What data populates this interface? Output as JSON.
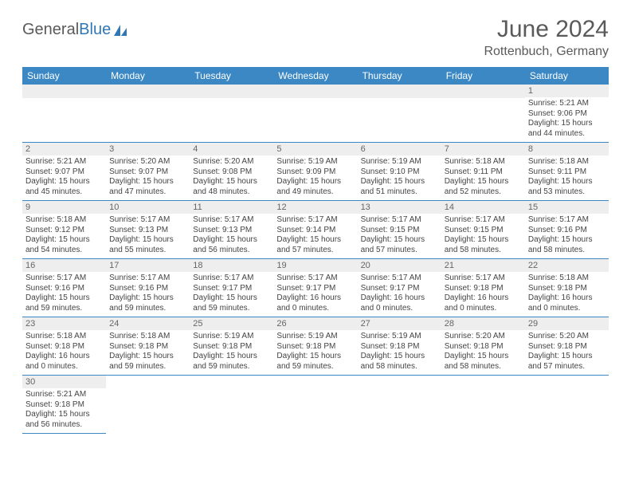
{
  "logo": {
    "text1": "General",
    "text2": "Blue"
  },
  "title": "June 2024",
  "location": "Rottenbuch, Germany",
  "colors": {
    "header_bg": "#3b88c4",
    "header_text": "#ffffff",
    "daynum_bg": "#eeeeee",
    "border": "#3b88c4"
  },
  "weekdays": [
    "Sunday",
    "Monday",
    "Tuesday",
    "Wednesday",
    "Thursday",
    "Friday",
    "Saturday"
  ],
  "weeks": [
    [
      {
        "day": "",
        "sunrise": "",
        "sunset": "",
        "daylight": ""
      },
      {
        "day": "",
        "sunrise": "",
        "sunset": "",
        "daylight": ""
      },
      {
        "day": "",
        "sunrise": "",
        "sunset": "",
        "daylight": ""
      },
      {
        "day": "",
        "sunrise": "",
        "sunset": "",
        "daylight": ""
      },
      {
        "day": "",
        "sunrise": "",
        "sunset": "",
        "daylight": ""
      },
      {
        "day": "",
        "sunrise": "",
        "sunset": "",
        "daylight": ""
      },
      {
        "day": "1",
        "sunrise": "Sunrise: 5:21 AM",
        "sunset": "Sunset: 9:06 PM",
        "daylight": "Daylight: 15 hours and 44 minutes."
      }
    ],
    [
      {
        "day": "2",
        "sunrise": "Sunrise: 5:21 AM",
        "sunset": "Sunset: 9:07 PM",
        "daylight": "Daylight: 15 hours and 45 minutes."
      },
      {
        "day": "3",
        "sunrise": "Sunrise: 5:20 AM",
        "sunset": "Sunset: 9:07 PM",
        "daylight": "Daylight: 15 hours and 47 minutes."
      },
      {
        "day": "4",
        "sunrise": "Sunrise: 5:20 AM",
        "sunset": "Sunset: 9:08 PM",
        "daylight": "Daylight: 15 hours and 48 minutes."
      },
      {
        "day": "5",
        "sunrise": "Sunrise: 5:19 AM",
        "sunset": "Sunset: 9:09 PM",
        "daylight": "Daylight: 15 hours and 49 minutes."
      },
      {
        "day": "6",
        "sunrise": "Sunrise: 5:19 AM",
        "sunset": "Sunset: 9:10 PM",
        "daylight": "Daylight: 15 hours and 51 minutes."
      },
      {
        "day": "7",
        "sunrise": "Sunrise: 5:18 AM",
        "sunset": "Sunset: 9:11 PM",
        "daylight": "Daylight: 15 hours and 52 minutes."
      },
      {
        "day": "8",
        "sunrise": "Sunrise: 5:18 AM",
        "sunset": "Sunset: 9:11 PM",
        "daylight": "Daylight: 15 hours and 53 minutes."
      }
    ],
    [
      {
        "day": "9",
        "sunrise": "Sunrise: 5:18 AM",
        "sunset": "Sunset: 9:12 PM",
        "daylight": "Daylight: 15 hours and 54 minutes."
      },
      {
        "day": "10",
        "sunrise": "Sunrise: 5:17 AM",
        "sunset": "Sunset: 9:13 PM",
        "daylight": "Daylight: 15 hours and 55 minutes."
      },
      {
        "day": "11",
        "sunrise": "Sunrise: 5:17 AM",
        "sunset": "Sunset: 9:13 PM",
        "daylight": "Daylight: 15 hours and 56 minutes."
      },
      {
        "day": "12",
        "sunrise": "Sunrise: 5:17 AM",
        "sunset": "Sunset: 9:14 PM",
        "daylight": "Daylight: 15 hours and 57 minutes."
      },
      {
        "day": "13",
        "sunrise": "Sunrise: 5:17 AM",
        "sunset": "Sunset: 9:15 PM",
        "daylight": "Daylight: 15 hours and 57 minutes."
      },
      {
        "day": "14",
        "sunrise": "Sunrise: 5:17 AM",
        "sunset": "Sunset: 9:15 PM",
        "daylight": "Daylight: 15 hours and 58 minutes."
      },
      {
        "day": "15",
        "sunrise": "Sunrise: 5:17 AM",
        "sunset": "Sunset: 9:16 PM",
        "daylight": "Daylight: 15 hours and 58 minutes."
      }
    ],
    [
      {
        "day": "16",
        "sunrise": "Sunrise: 5:17 AM",
        "sunset": "Sunset: 9:16 PM",
        "daylight": "Daylight: 15 hours and 59 minutes."
      },
      {
        "day": "17",
        "sunrise": "Sunrise: 5:17 AM",
        "sunset": "Sunset: 9:16 PM",
        "daylight": "Daylight: 15 hours and 59 minutes."
      },
      {
        "day": "18",
        "sunrise": "Sunrise: 5:17 AM",
        "sunset": "Sunset: 9:17 PM",
        "daylight": "Daylight: 15 hours and 59 minutes."
      },
      {
        "day": "19",
        "sunrise": "Sunrise: 5:17 AM",
        "sunset": "Sunset: 9:17 PM",
        "daylight": "Daylight: 16 hours and 0 minutes."
      },
      {
        "day": "20",
        "sunrise": "Sunrise: 5:17 AM",
        "sunset": "Sunset: 9:17 PM",
        "daylight": "Daylight: 16 hours and 0 minutes."
      },
      {
        "day": "21",
        "sunrise": "Sunrise: 5:17 AM",
        "sunset": "Sunset: 9:18 PM",
        "daylight": "Daylight: 16 hours and 0 minutes."
      },
      {
        "day": "22",
        "sunrise": "Sunrise: 5:18 AM",
        "sunset": "Sunset: 9:18 PM",
        "daylight": "Daylight: 16 hours and 0 minutes."
      }
    ],
    [
      {
        "day": "23",
        "sunrise": "Sunrise: 5:18 AM",
        "sunset": "Sunset: 9:18 PM",
        "daylight": "Daylight: 16 hours and 0 minutes."
      },
      {
        "day": "24",
        "sunrise": "Sunrise: 5:18 AM",
        "sunset": "Sunset: 9:18 PM",
        "daylight": "Daylight: 15 hours and 59 minutes."
      },
      {
        "day": "25",
        "sunrise": "Sunrise: 5:19 AM",
        "sunset": "Sunset: 9:18 PM",
        "daylight": "Daylight: 15 hours and 59 minutes."
      },
      {
        "day": "26",
        "sunrise": "Sunrise: 5:19 AM",
        "sunset": "Sunset: 9:18 PM",
        "daylight": "Daylight: 15 hours and 59 minutes."
      },
      {
        "day": "27",
        "sunrise": "Sunrise: 5:19 AM",
        "sunset": "Sunset: 9:18 PM",
        "daylight": "Daylight: 15 hours and 58 minutes."
      },
      {
        "day": "28",
        "sunrise": "Sunrise: 5:20 AM",
        "sunset": "Sunset: 9:18 PM",
        "daylight": "Daylight: 15 hours and 58 minutes."
      },
      {
        "day": "29",
        "sunrise": "Sunrise: 5:20 AM",
        "sunset": "Sunset: 9:18 PM",
        "daylight": "Daylight: 15 hours and 57 minutes."
      }
    ],
    [
      {
        "day": "30",
        "sunrise": "Sunrise: 5:21 AM",
        "sunset": "Sunset: 9:18 PM",
        "daylight": "Daylight: 15 hours and 56 minutes."
      },
      {
        "day": "",
        "sunrise": "",
        "sunset": "",
        "daylight": ""
      },
      {
        "day": "",
        "sunrise": "",
        "sunset": "",
        "daylight": ""
      },
      {
        "day": "",
        "sunrise": "",
        "sunset": "",
        "daylight": ""
      },
      {
        "day": "",
        "sunrise": "",
        "sunset": "",
        "daylight": ""
      },
      {
        "day": "",
        "sunrise": "",
        "sunset": "",
        "daylight": ""
      },
      {
        "day": "",
        "sunrise": "",
        "sunset": "",
        "daylight": ""
      }
    ]
  ]
}
